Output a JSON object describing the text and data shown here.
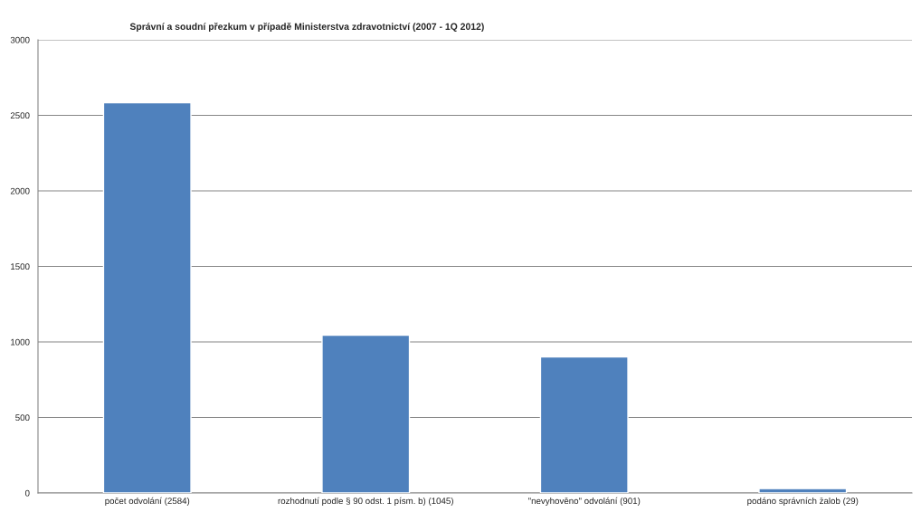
{
  "chart_data": {
    "type": "bar",
    "title": "Správní a soudní přezkum v případě Ministerstva zdravotnictví (2007 - 1Q 2012)",
    "categories": [
      "počet odvolání (2584)",
      "rozhodnutí podle § 90 odst. 1 písm. b) (1045)",
      "\"nevyhověno\" odvolání (901)",
      "podáno správních žalob (29)"
    ],
    "values": [
      2584,
      1045,
      901,
      29
    ],
    "color": "#4f81bd",
    "ylim": [
      0,
      3000
    ],
    "yticks": [
      0,
      500,
      1000,
      1500,
      2000,
      2500,
      3000
    ],
    "grid": "y"
  }
}
